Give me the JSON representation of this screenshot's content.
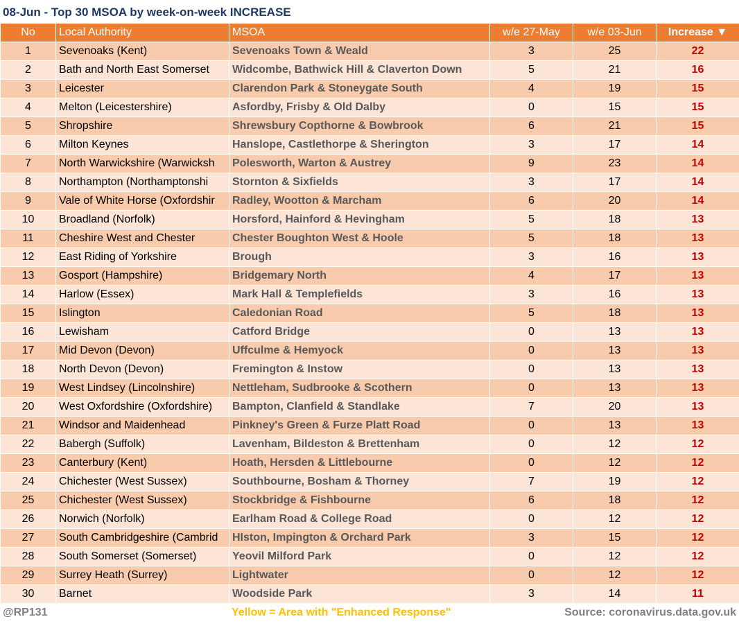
{
  "title": "08-Jun - Top 30 MSOA by week-on-week INCREASE",
  "table": {
    "columns": [
      "No",
      "Local Authority",
      "MSOA",
      "w/e 27-May",
      "w/e 03-Jun",
      "Increase ▼"
    ],
    "rows": [
      [
        1,
        "Sevenoaks (Kent)",
        "Sevenoaks Town & Weald",
        3,
        25,
        22
      ],
      [
        2,
        "Bath and North East Somerset",
        "Widcombe, Bathwick Hill & Claverton Down",
        5,
        21,
        16
      ],
      [
        3,
        "Leicester",
        "Clarendon Park & Stoneygate South",
        4,
        19,
        15
      ],
      [
        4,
        "Melton (Leicestershire)",
        "Asfordby, Frisby & Old Dalby",
        0,
        15,
        15
      ],
      [
        5,
        "Shropshire",
        "Shrewsbury Copthorne & Bowbrook",
        6,
        21,
        15
      ],
      [
        6,
        "Milton Keynes",
        "Hanslope, Castlethorpe & Sherington",
        3,
        17,
        14
      ],
      [
        7,
        "North Warwickshire (Warwicksh",
        "Polesworth, Warton & Austrey",
        9,
        23,
        14
      ],
      [
        8,
        "Northampton (Northamptonshi",
        "Stornton & Sixfields",
        3,
        17,
        14
      ],
      [
        9,
        "Vale of White Horse (Oxfordshir",
        "Radley, Wootton & Marcham",
        6,
        20,
        14
      ],
      [
        10,
        "Broadland (Norfolk)",
        "Horsford, Hainford & Hevingham",
        5,
        18,
        13
      ],
      [
        11,
        "Cheshire West and Chester",
        "Chester Boughton West & Hoole",
        5,
        18,
        13
      ],
      [
        12,
        "East Riding of Yorkshire",
        "Brough",
        3,
        16,
        13
      ],
      [
        13,
        "Gosport (Hampshire)",
        "Bridgemary North",
        4,
        17,
        13
      ],
      [
        14,
        "Harlow (Essex)",
        "Mark Hall & Templefields",
        3,
        16,
        13
      ],
      [
        15,
        "Islington",
        "Caledonian Road",
        5,
        18,
        13
      ],
      [
        16,
        "Lewisham",
        "Catford Bridge",
        0,
        13,
        13
      ],
      [
        17,
        "Mid Devon (Devon)",
        "Uffculme & Hemyock",
        0,
        13,
        13
      ],
      [
        18,
        "North Devon (Devon)",
        "Fremington & Instow",
        0,
        13,
        13
      ],
      [
        19,
        "West Lindsey (Lincolnshire)",
        "Nettleham, Sudbrooke & Scothern",
        0,
        13,
        13
      ],
      [
        20,
        "West Oxfordshire (Oxfordshire)",
        "Bampton, Clanfield & Standlake",
        7,
        20,
        13
      ],
      [
        21,
        "Windsor and Maidenhead",
        "Pinkney's Green & Furze Platt Road",
        0,
        13,
        13
      ],
      [
        22,
        "Babergh (Suffolk)",
        "Lavenham, Bildeston & Brettenham",
        0,
        12,
        12
      ],
      [
        23,
        "Canterbury (Kent)",
        "Hoath, Hersden & Littlebourne",
        0,
        12,
        12
      ],
      [
        24,
        "Chichester (West Sussex)",
        "Southbourne, Bosham & Thorney",
        7,
        19,
        12
      ],
      [
        25,
        "Chichester (West Sussex)",
        "Stockbridge & Fishbourne",
        6,
        18,
        12
      ],
      [
        26,
        "Norwich (Norfolk)",
        "Earlham Road & College Road",
        0,
        12,
        12
      ],
      [
        27,
        "South Cambridgeshire (Cambrid",
        "HIston, Impington & Orchard Park",
        3,
        15,
        12
      ],
      [
        28,
        "South Somerset (Somerset)",
        "Yeovil Milford Park",
        0,
        12,
        12
      ],
      [
        29,
        "Surrey Heath (Surrey)",
        "Lightwater",
        0,
        12,
        12
      ],
      [
        30,
        "Barnet",
        "Woodside Park",
        3,
        14,
        11
      ]
    ]
  },
  "footer": {
    "left": "@RP131",
    "center": "Yellow = Area with \"Enhanced Response\"",
    "right": "Source: coronavirus.data.gov.uk"
  }
}
